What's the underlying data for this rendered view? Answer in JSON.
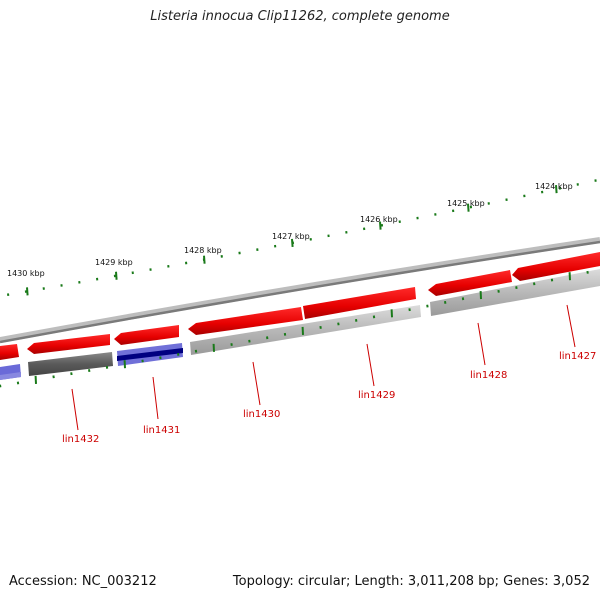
{
  "title": "Listeria innocua Clip11262, complete genome",
  "footer": {
    "accession": "Accession: NC_003212",
    "summary": "Topology: circular; Length: 3,011,208 bp; Genes: 3,052"
  },
  "colors": {
    "forward_gene": "#ee0000",
    "forward_gene_dark": "#aa0000",
    "backbone": "#8a8a8a",
    "tick": "#1a7a1a",
    "label": "#cc0000",
    "blue_gene": "#6a6ad8",
    "blue_gene_dark": "#000080"
  },
  "kbp_labels": [
    "1430 kbp",
    "1429 kbp",
    "1428 kbp",
    "1427 kbp",
    "1426 kbp",
    "1425 kbp",
    "1424 kbp"
  ],
  "gene_labels": [
    "lin1432",
    "lin1431",
    "lin1430",
    "lin1429",
    "lin1428",
    "lin1427"
  ]
}
